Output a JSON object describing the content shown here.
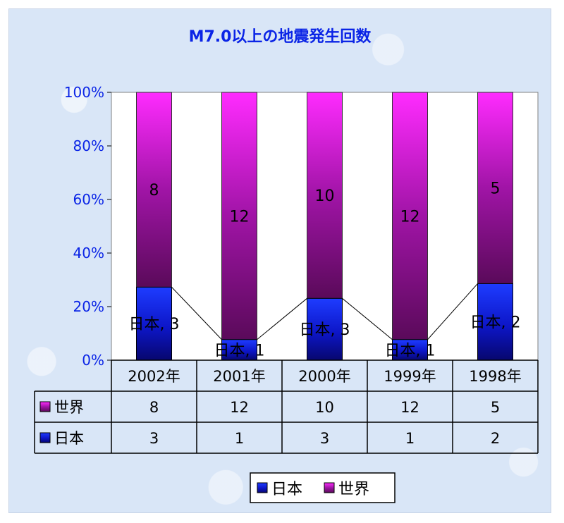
{
  "chart_data": {
    "type": "bar",
    "stacked": "percent",
    "title": "M7.0以上の地震発生回数",
    "categories": [
      "2002年",
      "2001年",
      "2000年",
      "1999年",
      "1998年"
    ],
    "series": [
      {
        "name": "日本",
        "values": [
          3,
          1,
          3,
          1,
          2
        ],
        "color": "#1a1aff"
      },
      {
        "name": "世界",
        "values": [
          8,
          12,
          10,
          12,
          5
        ],
        "color": "#cc22cc"
      }
    ],
    "ylim": [
      0,
      100
    ],
    "yticks": [
      "0%",
      "20%",
      "40%",
      "60%",
      "80%",
      "100%"
    ],
    "data_labels": {
      "日本": [
        "日本, 3",
        "日本, 1",
        "日本, 3",
        "日本, 1",
        "日本, 2"
      ],
      "世界": [
        "8",
        "12",
        "10",
        "12",
        "5"
      ]
    },
    "data_table": true,
    "series_lines": true,
    "legend": {
      "position": "bottom",
      "entries": [
        "日本",
        "世界"
      ]
    },
    "grid": false
  }
}
